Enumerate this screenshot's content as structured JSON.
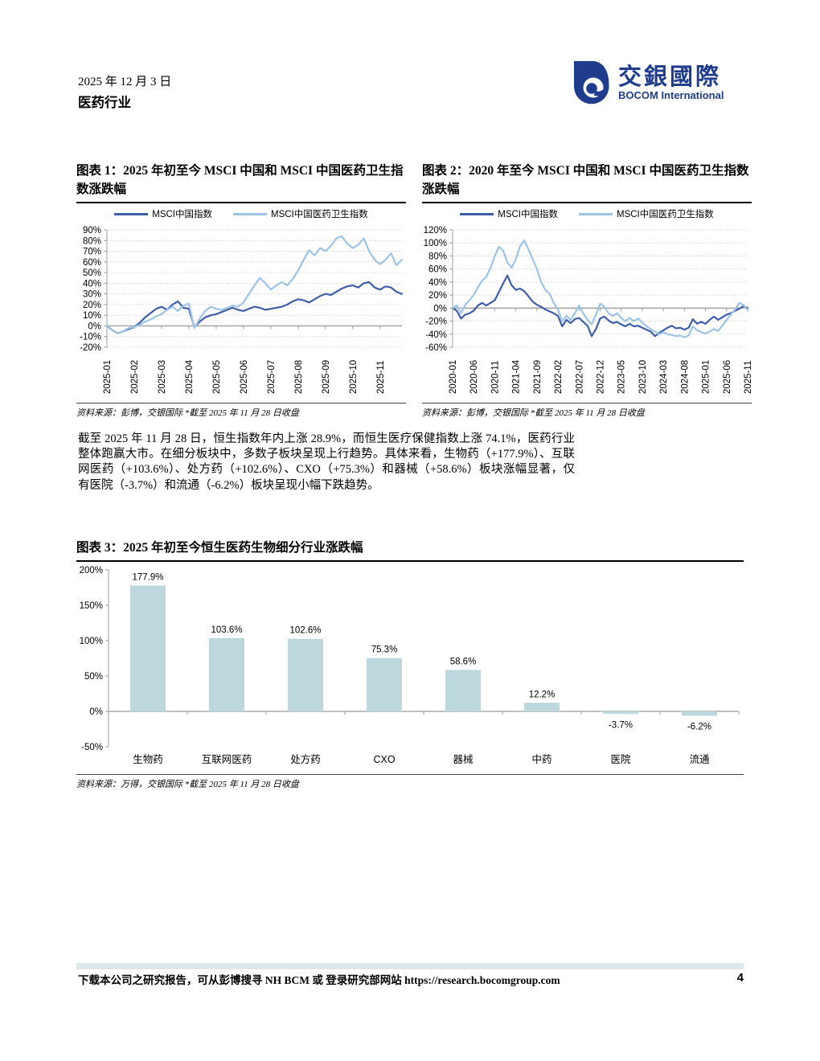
{
  "header": {
    "date": "2025 年 12 月 3 日",
    "sector": "医药行业"
  },
  "logo": {
    "cn": "交銀國際",
    "en": "BOCOM International",
    "color": "#1f3d8c"
  },
  "paragraph": "截至 2025 年 11 月 28 日，恒生指数年内上涨 28.9%，而恒生医疗保健指数上涨 74.1%，医药行业整体跑赢大市。在细分板块中，多数子板块呈现上行趋势。具体来看，生物药（+177.9%）、互联网医药（+103.6%）、处方药（+102.6%）、CXO（+75.3%）和器械（+58.6%）板块涨幅显著，仅有医院（-3.7%）和流通（-6.2%）板块呈现小幅下跌趋势。",
  "footer": {
    "text": "下载本公司之研究报告，可从彭博搜寻 NH BCM 或 登录研究部网站 https://research.bocomgroup.com",
    "page_number": "4"
  },
  "chart_data": [
    {
      "type": "line",
      "title": "图表 1：2025 年初至今 MSCI 中国和 MSCI 中国医药卫生指数涨跌幅",
      "source": "资料来源：彭博，交银国际   *截至 2025 年 11 月 28 日收盘",
      "ylim": [
        -20,
        90
      ],
      "ystep": 10,
      "grid": "dotted-horizontal",
      "legend_position": "top",
      "x_tick_every": 5,
      "xticklabels": [
        "2025-01",
        "2025-02",
        "2025-03",
        "2025-04",
        "2025-05",
        "2025-06",
        "2025-07",
        "2025-08",
        "2025-09",
        "2025-10",
        "2025-11"
      ],
      "series": [
        {
          "name": "MSCI中国指数",
          "color": "#3F5EA9",
          "values": [
            0,
            -4,
            -7,
            -5,
            -3,
            -1,
            3,
            8,
            12,
            16,
            18,
            15,
            20,
            23,
            17,
            16,
            -1,
            4,
            8,
            10,
            11,
            13,
            15,
            17,
            15,
            14,
            16,
            18,
            17,
            15,
            16,
            17,
            18,
            20,
            23,
            25,
            24,
            22,
            25,
            28,
            30,
            29,
            32,
            35,
            37,
            38,
            36,
            40,
            41,
            36,
            34,
            37,
            36,
            32,
            30
          ]
        },
        {
          "name": "MSCI中国医药卫生指数",
          "color": "#9DC3E6",
          "values": [
            0,
            -4,
            -7,
            -5,
            -2,
            -1,
            1,
            4,
            6,
            9,
            11,
            15,
            18,
            14,
            19,
            21,
            -2,
            7,
            14,
            18,
            16,
            15,
            17,
            19,
            18,
            22,
            30,
            38,
            45,
            40,
            34,
            38,
            41,
            38,
            44,
            52,
            62,
            71,
            66,
            73,
            70,
            75,
            82,
            84,
            77,
            73,
            76,
            82,
            70,
            62,
            58,
            62,
            68,
            57,
            62
          ]
        }
      ]
    },
    {
      "type": "line",
      "title": "图表 2：2020 年至今 MSCI 中国和 MSCI 中国医药卫生指数涨跌幅",
      "source": "资料来源：彭博，交银国际   *截至 2025 年 11 月 28 日收盘",
      "ylim": [
        -60,
        120
      ],
      "ystep": 20,
      "grid": "dotted-horizontal",
      "legend_position": "top",
      "x_tick_every": 5,
      "xticklabels": [
        "2020-01",
        "2020-06",
        "2020-11",
        "2021-04",
        "2021-09",
        "2022-02",
        "2022-07",
        "2022-12",
        "2023-05",
        "2023-10",
        "2024-03",
        "2024-08",
        "2025-01",
        "2025-06",
        "2025-11"
      ],
      "series": [
        {
          "name": "MSCI中国指数",
          "color": "#3F5EA9",
          "values": [
            0,
            -4,
            -16,
            -10,
            -8,
            -4,
            4,
            8,
            4,
            8,
            12,
            25,
            38,
            50,
            35,
            28,
            30,
            26,
            18,
            10,
            5,
            2,
            -2,
            -5,
            -8,
            -12,
            -28,
            -18,
            -23,
            -17,
            -15,
            -21,
            -27,
            -43,
            -32,
            -16,
            -13,
            -19,
            -23,
            -21,
            -25,
            -28,
            -24,
            -28,
            -27,
            -30,
            -33,
            -36,
            -43,
            -38,
            -34,
            -30,
            -27,
            -31,
            -30,
            -33,
            -30,
            -17,
            -24,
            -21,
            -24,
            -18,
            -13,
            -18,
            -14,
            -10,
            -8,
            -4,
            -1,
            3,
            0
          ]
        },
        {
          "name": "MSCI中国医药卫生指数",
          "color": "#9DC3E6",
          "values": [
            0,
            4,
            -8,
            5,
            12,
            20,
            32,
            42,
            48,
            62,
            80,
            94,
            88,
            70,
            62,
            75,
            95,
            104,
            90,
            75,
            60,
            40,
            28,
            22,
            8,
            -2,
            -20,
            -12,
            -18,
            -8,
            4,
            -8,
            -18,
            -25,
            -10,
            7,
            2,
            -8,
            -12,
            -8,
            -15,
            -20,
            -15,
            -20,
            -16,
            -22,
            -28,
            -32,
            -36,
            -40,
            -37,
            -40,
            -41,
            -43,
            -42,
            -45,
            -42,
            -28,
            -34,
            -37,
            -39,
            -36,
            -32,
            -35,
            -27,
            -18,
            -10,
            -2,
            8,
            5,
            -3
          ]
        }
      ]
    },
    {
      "type": "bar",
      "title": "图表 3：2025 年初至今恒生医药生物细分行业涨跌幅",
      "source": "资料来源：万得，交银国际   *截至 2025 年 11 月 28 日收盘",
      "ylim": [
        -50,
        200
      ],
      "ystep": 50,
      "grid": "none",
      "bar_color": "#BCD8DD",
      "categories": [
        "生物药",
        "互联网医药",
        "处方药",
        "CXO",
        "器械",
        "中药",
        "医院",
        "流通"
      ],
      "values": [
        177.9,
        103.6,
        102.6,
        75.3,
        58.6,
        12.2,
        -3.7,
        -6.2
      ],
      "labels": [
        "177.9%",
        "103.6%",
        "102.6%",
        "75.3%",
        "58.6%",
        "12.2%",
        "-3.7%",
        "-6.2%"
      ]
    }
  ]
}
